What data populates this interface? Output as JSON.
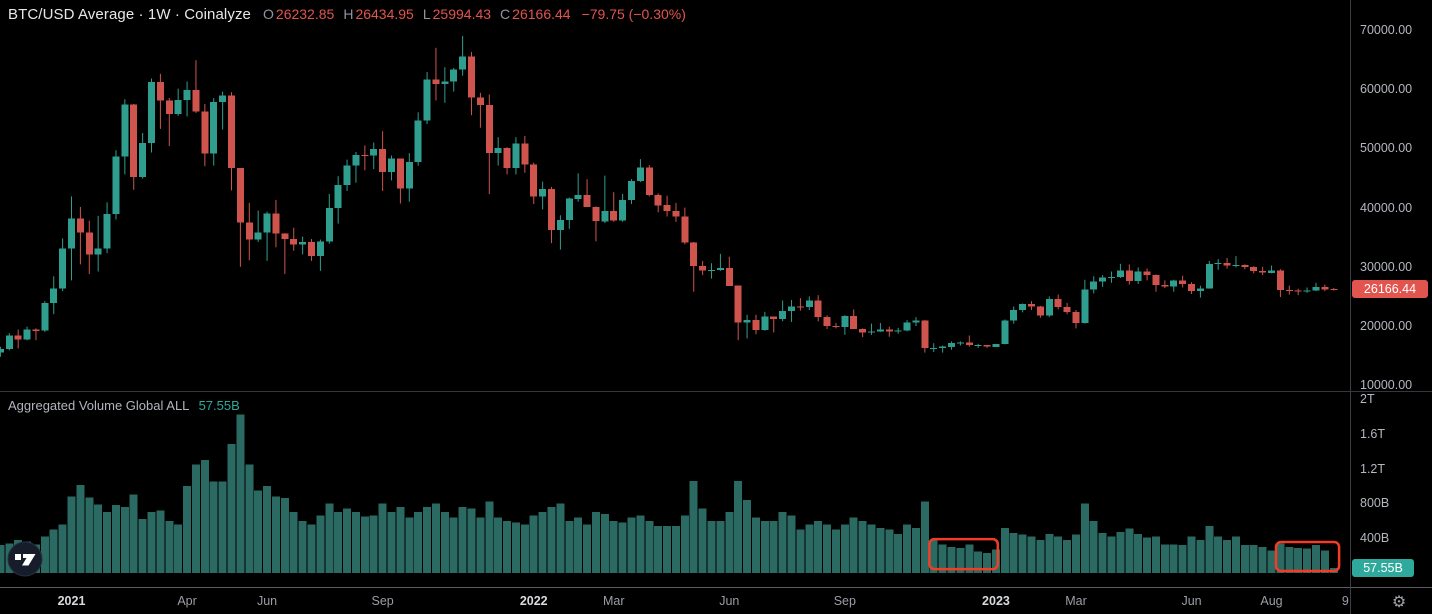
{
  "header": {
    "symbol_title": "BTC/USD Average · 1W · Coinalyze",
    "ohlc": [
      {
        "label": "O",
        "value": "26232.85"
      },
      {
        "label": "H",
        "value": "26434.95"
      },
      {
        "label": "L",
        "value": "25994.43"
      },
      {
        "label": "C",
        "value": "26166.44"
      }
    ],
    "change": "−79.75 (−0.30%)"
  },
  "volume_header": {
    "label": "Aggregated Volume Global ALL",
    "value": "57.55B"
  },
  "price_axis": {
    "ticks": [
      {
        "label": "70000.00",
        "value": 70000
      },
      {
        "label": "60000.00",
        "value": 60000
      },
      {
        "label": "50000.00",
        "value": 50000
      },
      {
        "label": "40000.00",
        "value": 40000
      },
      {
        "label": "30000.00",
        "value": 30000
      },
      {
        "label": "20000.00",
        "value": 20000
      },
      {
        "label": "10000.00",
        "value": 10000
      }
    ],
    "badge": {
      "label": "26166.44",
      "value": 26166.44
    }
  },
  "volume_axis": {
    "ticks": [
      {
        "label": "2T",
        "value": 2000
      },
      {
        "label": "1.6T",
        "value": 1600
      },
      {
        "label": "1.2T",
        "value": 1200
      },
      {
        "label": "800B",
        "value": 800
      },
      {
        "label": "400B",
        "value": 400
      }
    ],
    "badge": {
      "label": "57.55B",
      "value": 57.55
    }
  },
  "time_axis": {
    "labels": [
      {
        "label": "2021",
        "week": 8,
        "bold": true
      },
      {
        "label": "Apr",
        "week": 21,
        "bold": false
      },
      {
        "label": "Jun",
        "week": 30,
        "bold": false
      },
      {
        "label": "Sep",
        "week": 43,
        "bold": false
      },
      {
        "label": "2022",
        "week": 60,
        "bold": true
      },
      {
        "label": "Mar",
        "week": 69,
        "bold": false
      },
      {
        "label": "Jun",
        "week": 82,
        "bold": false
      },
      {
        "label": "Sep",
        "week": 95,
        "bold": false
      },
      {
        "label": "2023",
        "week": 112,
        "bold": true
      },
      {
        "label": "Mar",
        "week": 121,
        "bold": false
      },
      {
        "label": "Jun",
        "week": 134,
        "bold": false
      },
      {
        "label": "Aug",
        "week": 143,
        "bold": false
      },
      {
        "label": "9",
        "week": 151.3,
        "bold": false
      }
    ]
  },
  "icons": {
    "settings": "gear-icon",
    "logo": "tradingview-logo",
    "settings_glyph": "⚙"
  },
  "colors": {
    "background": "#000000",
    "candle_up": "#2f9e8f",
    "candle_down": "#cf544e",
    "volume_bar": "#2b6a62",
    "accent_red_text": "#e2544e",
    "annotation_box": "#f23d26",
    "price_badge_bg": "#e2554f",
    "volume_badge_bg": "#2fa99c",
    "axis_text": "#b4b7bf",
    "muted_text": "#9b9ea6"
  },
  "chart_data": {
    "type": "candlestick+volume",
    "symbol": "BTC/USD Average",
    "timeframe": "1W",
    "source": "Coinalyze",
    "x_unit": "week-index",
    "price_pane_range_usd": [
      9000,
      75000
    ],
    "volume_pane_range_billion": [
      0,
      2260
    ],
    "grid": false,
    "candles": {
      "ohlc_usd": [
        [
          15500,
          16500,
          14800,
          16100
        ],
        [
          16100,
          18800,
          15900,
          18400
        ],
        [
          18400,
          19400,
          16200,
          17700
        ],
        [
          17700,
          19900,
          17600,
          19400
        ],
        [
          19400,
          19600,
          17600,
          19200
        ],
        [
          19200,
          24200,
          19000,
          23900
        ],
        [
          23900,
          28400,
          22000,
          26300
        ],
        [
          26300,
          34800,
          25900,
          33100
        ],
        [
          33100,
          41900,
          27700,
          38200
        ],
        [
          38200,
          40100,
          30400,
          35800
        ],
        [
          35800,
          37800,
          28800,
          32100
        ],
        [
          32100,
          38600,
          29200,
          33100
        ],
        [
          33100,
          40900,
          32300,
          38900
        ],
        [
          38900,
          49700,
          38000,
          48600
        ],
        [
          48600,
          58300,
          45600,
          57400
        ],
        [
          57400,
          57500,
          43000,
          45200
        ],
        [
          45200,
          52600,
          44900,
          50900
        ],
        [
          50900,
          61800,
          49300,
          61200
        ],
        [
          61200,
          62600,
          53300,
          58100
        ],
        [
          58100,
          58500,
          50400,
          55800
        ],
        [
          55800,
          60100,
          55500,
          58200
        ],
        [
          58200,
          61300,
          55400,
          59900
        ],
        [
          59900,
          64900,
          56000,
          56200
        ],
        [
          56200,
          57500,
          47000,
          49100
        ],
        [
          49100,
          58500,
          47100,
          57800
        ],
        [
          57800,
          59600,
          53200,
          58900
        ],
        [
          58900,
          59500,
          42900,
          46700
        ],
        [
          46700,
          46700,
          30000,
          37500
        ],
        [
          37500,
          40800,
          31100,
          34600
        ],
        [
          34600,
          39500,
          34200,
          35800
        ],
        [
          35800,
          39300,
          31000,
          39000
        ],
        [
          39000,
          41300,
          33300,
          35600
        ],
        [
          35600,
          35700,
          28800,
          34700
        ],
        [
          34700,
          36600,
          32700,
          33800
        ],
        [
          33800,
          35100,
          32100,
          34200
        ],
        [
          34200,
          34700,
          31000,
          31800
        ],
        [
          31800,
          34600,
          29300,
          34300
        ],
        [
          34300,
          42300,
          33900,
          39900
        ],
        [
          39900,
          45300,
          37300,
          43800
        ],
        [
          43800,
          48100,
          42800,
          47100
        ],
        [
          47100,
          49400,
          44200,
          48900
        ],
        [
          48900,
          50500,
          46300,
          48800
        ],
        [
          48800,
          51000,
          46500,
          49900
        ],
        [
          49900,
          52900,
          42800,
          46000
        ],
        [
          46000,
          48800,
          44600,
          48300
        ],
        [
          48300,
          48300,
          40700,
          43200
        ],
        [
          43200,
          49200,
          41000,
          47700
        ],
        [
          47700,
          56100,
          47100,
          54700
        ],
        [
          54700,
          62900,
          54100,
          61600
        ],
        [
          61600,
          67000,
          58100,
          60900
        ],
        [
          60900,
          63700,
          57700,
          61300
        ],
        [
          61300,
          63600,
          59600,
          63300
        ],
        [
          63300,
          69000,
          62300,
          65500
        ],
        [
          65500,
          66300,
          55600,
          58600
        ],
        [
          58600,
          59400,
          53500,
          57300
        ],
        [
          57300,
          59100,
          42300,
          49200
        ],
        [
          49200,
          51900,
          47100,
          50100
        ],
        [
          50100,
          50200,
          45600,
          46700
        ],
        [
          46700,
          51900,
          45600,
          50800
        ],
        [
          50800,
          52100,
          45900,
          47300
        ],
        [
          47300,
          47600,
          40600,
          41900
        ],
        [
          41900,
          44400,
          39700,
          43100
        ],
        [
          43100,
          43500,
          34000,
          36200
        ],
        [
          36200,
          38700,
          32900,
          37900
        ],
        [
          37900,
          41700,
          36400,
          41500
        ],
        [
          41500,
          45800,
          41000,
          42100
        ],
        [
          42100,
          44800,
          40100,
          40100
        ],
        [
          40100,
          40200,
          34300,
          37700
        ],
        [
          37700,
          45400,
          37400,
          39400
        ],
        [
          39400,
          42600,
          37600,
          37800
        ],
        [
          37800,
          42300,
          37600,
          41300
        ],
        [
          41300,
          44800,
          40600,
          44500
        ],
        [
          44500,
          48200,
          44300,
          46800
        ],
        [
          46800,
          47200,
          41900,
          42100
        ],
        [
          42100,
          42400,
          39200,
          40400
        ],
        [
          40400,
          42000,
          38500,
          39400
        ],
        [
          39400,
          40800,
          37600,
          38500
        ],
        [
          38500,
          40000,
          33800,
          34100
        ],
        [
          34100,
          34200,
          25800,
          30100
        ],
        [
          30100,
          31000,
          28600,
          29400
        ],
        [
          29400,
          30600,
          28000,
          29500
        ],
        [
          29500,
          32200,
          29300,
          29800
        ],
        [
          29800,
          31700,
          26800,
          26800
        ],
        [
          26800,
          26800,
          17600,
          20600
        ],
        [
          20600,
          21900,
          17900,
          21000
        ],
        [
          21000,
          21900,
          18600,
          19300
        ],
        [
          19300,
          22400,
          19200,
          21600
        ],
        [
          21600,
          21600,
          18900,
          21200
        ],
        [
          21200,
          24300,
          20800,
          22500
        ],
        [
          22500,
          24400,
          20700,
          23300
        ],
        [
          23300,
          24700,
          22600,
          23200
        ],
        [
          23200,
          25000,
          22700,
          24300
        ],
        [
          24300,
          25200,
          20800,
          21500
        ],
        [
          21500,
          21800,
          19500,
          20000
        ],
        [
          20000,
          20500,
          19600,
          19800
        ],
        [
          19800,
          21800,
          18500,
          21700
        ],
        [
          21700,
          22800,
          19500,
          19500
        ],
        [
          19500,
          19600,
          18100,
          18900
        ],
        [
          18900,
          20400,
          18500,
          19100
        ],
        [
          19100,
          20500,
          19000,
          19400
        ],
        [
          19400,
          19900,
          18200,
          19100
        ],
        [
          19100,
          19700,
          18700,
          19200
        ],
        [
          19200,
          21000,
          19100,
          20600
        ],
        [
          20600,
          21500,
          20000,
          20900
        ],
        [
          20900,
          21000,
          15500,
          16300
        ],
        [
          16300,
          17100,
          15600,
          16300
        ],
        [
          16300,
          16700,
          15500,
          16500
        ],
        [
          16500,
          17400,
          16000,
          17100
        ],
        [
          17100,
          17400,
          16700,
          17200
        ],
        [
          17200,
          18400,
          16500,
          16800
        ],
        [
          16800,
          17000,
          16300,
          16800
        ],
        [
          16800,
          16800,
          16300,
          16500
        ],
        [
          16500,
          17000,
          16500,
          17000
        ],
        [
          17000,
          21100,
          16900,
          20900
        ],
        [
          20900,
          23300,
          20400,
          22700
        ],
        [
          22700,
          23800,
          22300,
          23700
        ],
        [
          23700,
          24200,
          22700,
          23300
        ],
        [
          23300,
          23400,
          21400,
          21800
        ],
        [
          21800,
          25000,
          21500,
          24600
        ],
        [
          24600,
          25300,
          22800,
          23200
        ],
        [
          23200,
          23900,
          22000,
          22400
        ],
        [
          22400,
          22700,
          19600,
          20500
        ],
        [
          20500,
          27800,
          20400,
          26200
        ],
        [
          26200,
          28400,
          25500,
          27500
        ],
        [
          27500,
          28600,
          26600,
          28200
        ],
        [
          28200,
          29200,
          27300,
          28300
        ],
        [
          28300,
          30500,
          28100,
          29400
        ],
        [
          29400,
          30400,
          27000,
          27600
        ],
        [
          27600,
          29900,
          27100,
          29200
        ],
        [
          29200,
          29700,
          27700,
          28600
        ],
        [
          28600,
          28700,
          25800,
          26900
        ],
        [
          26900,
          27700,
          26400,
          26700
        ],
        [
          26700,
          27800,
          25800,
          27700
        ],
        [
          27700,
          28500,
          26500,
          27100
        ],
        [
          27100,
          27400,
          25400,
          25900
        ],
        [
          25900,
          26800,
          24800,
          26300
        ],
        [
          26300,
          31000,
          26300,
          30500
        ],
        [
          30500,
          31300,
          29500,
          30600
        ],
        [
          30600,
          31500,
          29700,
          30200
        ],
        [
          30200,
          31800,
          29900,
          30300
        ],
        [
          30300,
          30400,
          29600,
          30000
        ],
        [
          30000,
          30100,
          28900,
          29300
        ],
        [
          29300,
          30000,
          28600,
          29000
        ],
        [
          29000,
          30200,
          28900,
          29400
        ],
        [
          29400,
          29600,
          24900,
          26100
        ],
        [
          26100,
          26800,
          25300,
          26000
        ],
        [
          26000,
          26300,
          25200,
          25900
        ],
        [
          25900,
          26500,
          25600,
          26000
        ],
        [
          26000,
          27300,
          25900,
          26600
        ],
        [
          26600,
          27000,
          25900,
          26200
        ],
        [
          26232.85,
          26434.95,
          25994.43,
          26166.44
        ]
      ],
      "volume_billion_usd": [
        320,
        340,
        380,
        360,
        330,
        420,
        500,
        560,
        880,
        1010,
        870,
        790,
        700,
        780,
        760,
        900,
        620,
        700,
        720,
        600,
        560,
        1000,
        1250,
        1300,
        1050,
        1050,
        1480,
        1820,
        1250,
        950,
        1000,
        880,
        860,
        700,
        600,
        560,
        660,
        800,
        700,
        740,
        700,
        650,
        660,
        800,
        700,
        760,
        640,
        700,
        760,
        800,
        700,
        640,
        760,
        740,
        640,
        820,
        640,
        600,
        580,
        560,
        660,
        700,
        760,
        800,
        600,
        640,
        560,
        700,
        680,
        600,
        580,
        640,
        660,
        600,
        540,
        540,
        540,
        660,
        1060,
        740,
        600,
        600,
        700,
        1060,
        840,
        640,
        600,
        600,
        700,
        660,
        500,
        560,
        600,
        560,
        500,
        560,
        640,
        600,
        560,
        520,
        500,
        450,
        560,
        520,
        820,
        380,
        330,
        300,
        290,
        330,
        250,
        230,
        270,
        520,
        460,
        440,
        420,
        380,
        450,
        420,
        380,
        440,
        800,
        600,
        460,
        420,
        470,
        510,
        450,
        410,
        420,
        330,
        330,
        320,
        420,
        380,
        540,
        420,
        380,
        420,
        320,
        320,
        300,
        260,
        340,
        300,
        290,
        280,
        320,
        260,
        57.55
      ]
    },
    "annotations": [
      {
        "type": "box",
        "pane": "volume",
        "start_week": 104.9,
        "end_week": 112.6,
        "top_volume_b": 390,
        "bottom_volume_b": 45,
        "color": "#f23d26"
      },
      {
        "type": "box",
        "pane": "volume",
        "start_week": 143.9,
        "end_week": 151.0,
        "top_volume_b": 356,
        "bottom_volume_b": 23,
        "color": "#f23d26"
      }
    ]
  }
}
